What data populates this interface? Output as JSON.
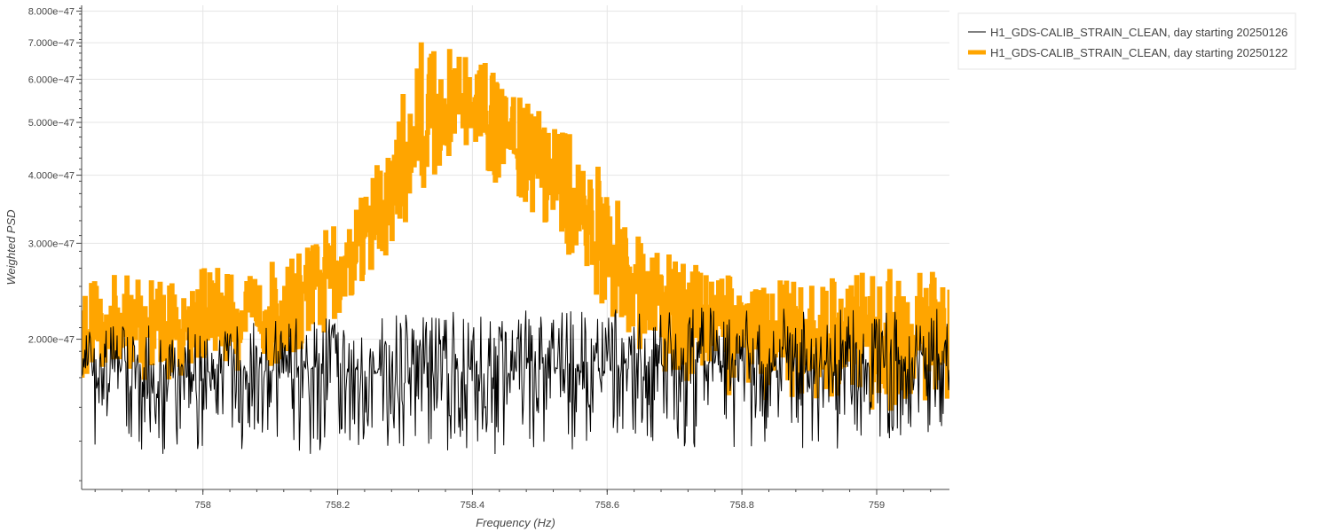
{
  "chart_data": {
    "type": "line",
    "title": "",
    "xlabel": "Frequency (Hz)",
    "ylabel": "Weighted PSD",
    "xlim": [
      757.82,
      759.108
    ],
    "ylim": [
      1.06e-47,
      8.2e-47
    ],
    "yscale": "log",
    "grid": true,
    "legend_position": "outside-top-right",
    "x_ticks": [
      {
        "value": 758,
        "label": "758"
      },
      {
        "value": 758.2,
        "label": "758.2"
      },
      {
        "value": 758.4,
        "label": "758.4"
      },
      {
        "value": 758.6,
        "label": "758.6"
      },
      {
        "value": 758.8,
        "label": "758.8"
      },
      {
        "value": 759,
        "label": "759"
      }
    ],
    "y_ticks": [
      {
        "value": 2e-47,
        "label": "2.000e−47"
      },
      {
        "value": 3e-47,
        "label": "3.000e−47"
      },
      {
        "value": 4e-47,
        "label": "4.000e−47"
      },
      {
        "value": 5e-47,
        "label": "5.000e−47"
      },
      {
        "value": 6e-47,
        "label": "6.000e−47"
      },
      {
        "value": 7e-47,
        "label": "7.000e−47"
      },
      {
        "value": 8e-47,
        "label": "8.000e−47"
      }
    ],
    "series": [
      {
        "name": "H1_GDS-CALIB_STRAIN_CLEAN, day starting 20250126",
        "color": "#000000",
        "style": "thin-line",
        "x": [
          757.82,
          757.87,
          757.92,
          757.97,
          758.02,
          758.07,
          758.12,
          758.17,
          758.22,
          758.27,
          758.32,
          758.37,
          758.42,
          758.47,
          758.52,
          758.57,
          758.62,
          758.67,
          758.72,
          758.77,
          758.82,
          758.87,
          758.92,
          758.97,
          759.02,
          759.07,
          759.108
        ],
        "y": [
          1.8e-47,
          1.75e-47,
          1.78e-47,
          1.72e-47,
          1.74e-47,
          1.76e-47,
          1.73e-47,
          1.75e-47,
          1.77e-47,
          1.72e-47,
          1.74e-47,
          1.76e-47,
          1.73e-47,
          1.75e-47,
          1.77e-47,
          1.74e-47,
          1.76e-47,
          1.78e-47,
          1.8e-47,
          1.82e-47,
          1.79e-47,
          1.81e-47,
          1.78e-47,
          1.8e-47,
          1.82e-47,
          1.79e-47,
          1.8e-47
        ],
        "range_min": [
          1.22e-47,
          1.25e-47,
          1.2e-47,
          1.24e-47,
          1.26e-47,
          1.23e-47,
          1.25e-47,
          1.22e-47,
          1.24e-47,
          1.26e-47,
          1.25e-47,
          1.23e-47,
          1.2e-47,
          1.24e-47,
          1.25e-47,
          1.23e-47,
          1.26e-47,
          1.24e-47,
          1.27e-47,
          1.25e-47,
          1.26e-47,
          1.28e-47,
          1.22e-47,
          1.27e-47,
          1.28e-47,
          1.3e-47,
          1.32e-47
        ],
        "range_max": [
          2.1e-47,
          2.15e-47,
          2.12e-47,
          2.1e-47,
          2.14e-47,
          2.16e-47,
          2.18e-47,
          2.2e-47,
          2.25e-47,
          2.3e-47,
          2.2e-47,
          2.28e-47,
          2.22e-47,
          2.25e-47,
          2.3e-47,
          2.25e-47,
          2.28e-47,
          2.2e-47,
          2.32e-47,
          2.35e-47,
          2.3e-47,
          2.28e-47,
          2.25e-47,
          2.3e-47,
          2.32e-47,
          2.28e-47,
          2.3e-47
        ]
      },
      {
        "name": "H1_GDS-CALIB_STRAIN_CLEAN, day starting 20250122",
        "color": "#ffa500",
        "style": "thick-line",
        "x": [
          757.82,
          757.87,
          757.92,
          757.97,
          758.02,
          758.07,
          758.12,
          758.17,
          758.22,
          758.27,
          758.3,
          758.33,
          758.36,
          758.38,
          758.4,
          758.42,
          758.45,
          758.48,
          758.51,
          758.54,
          758.57,
          758.6,
          758.65,
          758.7,
          758.75,
          758.8,
          758.85,
          758.9,
          758.95,
          759.0,
          759.05,
          759.108
        ],
        "y": [
          2e-47,
          2.05e-47,
          2.08e-47,
          2.12e-47,
          2.15e-47,
          2.2e-47,
          2.3e-47,
          2.5e-47,
          2.9e-47,
          3.5e-47,
          4.2e-47,
          4.8e-47,
          5.2e-47,
          5.3e-47,
          5.2e-47,
          5e-47,
          4.6e-47,
          4.2e-47,
          3.9e-47,
          3.6e-47,
          3.2e-47,
          2.8e-47,
          2.4e-47,
          2.25e-47,
          2.15e-47,
          2.1e-47,
          2.05e-47,
          2.05e-47,
          2.02e-47,
          2e-47,
          2e-47,
          2e-47
        ],
        "range_min": [
          1.62e-47,
          1.65e-47,
          1.66e-47,
          1.7e-47,
          1.72e-47,
          1.75e-47,
          1.8e-47,
          1.95e-47,
          2.3e-47,
          2.8e-47,
          3.3e-47,
          3.8e-47,
          4.3e-47,
          4.3e-47,
          4.2e-47,
          4e-47,
          3.7e-47,
          3.4e-47,
          3.1e-47,
          2.9e-47,
          2.6e-47,
          2.2e-47,
          1.85e-47,
          1.7e-47,
          1.6e-47,
          1.58e-47,
          1.55e-47,
          1.56e-47,
          1.52e-47,
          1.48e-47,
          1.5e-47,
          1.55e-47
        ],
        "range_max": [
          2.55e-47,
          2.62e-47,
          2.6e-47,
          2.65e-47,
          2.7e-47,
          2.75e-47,
          2.8e-47,
          3.05e-47,
          3.6e-47,
          4.4e-47,
          5.8e-47,
          7.5e-47,
          6.6e-47,
          7.4e-47,
          6.2e-47,
          6.4e-47,
          5.6e-47,
          5.5e-47,
          5e-47,
          4.8e-47,
          4.5e-47,
          4.1e-47,
          3e-47,
          2.8e-47,
          2.7e-47,
          2.6e-47,
          2.55e-47,
          2.55e-47,
          2.6e-47,
          2.65e-47,
          2.7e-47,
          2.6e-47
        ]
      }
    ]
  }
}
